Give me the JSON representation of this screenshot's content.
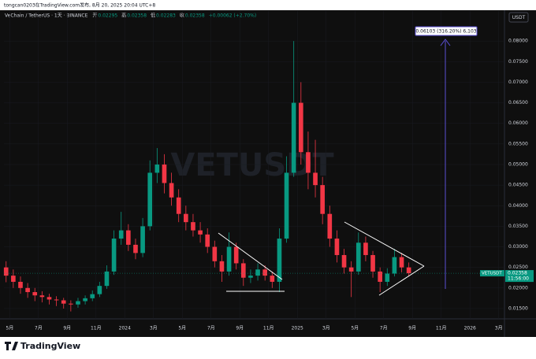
{
  "page_header": "tongcan0203在TradingView.com发布, 8月 20, 2025 20:04 UTC+8",
  "footer_brand": "TradingView",
  "chart_data": {
    "type": "candlestick",
    "title": "VeChain / TetherUS · 1天 · BINANCE",
    "ohlc_header": [
      {
        "label": "开",
        "value": "0.02295"
      },
      {
        "label": "高",
        "value": "0.02358"
      },
      {
        "label": "低",
        "value": "0.02283"
      },
      {
        "label": "收",
        "value": "0.02358"
      }
    ],
    "change": "+0.00062 (+2.70%)",
    "watermark": "VETUSDT",
    "currency": "USDT",
    "measure_label": "0.06103 (316.20%) 6,103",
    "last_price": {
      "symbol": "VETUSDT",
      "price": "0.02358",
      "countdown": "11:56:00"
    },
    "x": [
      -0.25,
      0.25,
      0.75,
      1.25,
      1.75,
      2.25,
      2.75,
      3.25,
      3.75,
      4.25,
      4.75,
      5.25,
      5.75,
      6.25,
      6.75,
      7.25,
      7.75,
      8.25,
      8.75,
      9.25,
      9.75,
      10.25,
      10.75,
      11.25,
      11.75,
      12.25,
      12.75,
      13.25,
      13.75,
      14.25,
      14.75,
      15.25,
      15.75,
      16.25,
      16.75,
      17.25,
      17.75,
      18.25,
      18.75,
      19.25,
      19.75,
      20.25,
      20.75,
      21.25,
      21.75,
      22.25,
      22.75,
      23.25,
      23.75,
      24.25,
      24.75,
      25.25,
      25.75,
      26.25,
      26.75,
      27.25,
      27.75
    ],
    "series": [
      {
        "name": "VETUSDT",
        "up_color": "#089981",
        "down_color": "#f23645",
        "open": [
          0.025,
          0.023,
          0.0215,
          0.02,
          0.019,
          0.0182,
          0.0178,
          0.0172,
          0.017,
          0.0162,
          0.016,
          0.0168,
          0.0175,
          0.0185,
          0.0205,
          0.024,
          0.032,
          0.034,
          0.0305,
          0.0285,
          0.035,
          0.048,
          0.05,
          0.0455,
          0.042,
          0.038,
          0.036,
          0.034,
          0.033,
          0.03,
          0.0265,
          0.024,
          0.03,
          0.026,
          0.0225,
          0.023,
          0.0245,
          0.023,
          0.0215,
          0.032,
          0.048,
          0.065,
          0.053,
          0.048,
          0.045,
          0.038,
          0.032,
          0.028,
          0.025,
          0.024,
          0.031,
          0.028,
          0.024,
          0.0215,
          0.0235,
          0.0275,
          0.025
        ],
        "high": [
          0.0265,
          0.0245,
          0.0228,
          0.0212,
          0.02,
          0.0192,
          0.0186,
          0.018,
          0.0176,
          0.017,
          0.0176,
          0.0182,
          0.0194,
          0.0215,
          0.0255,
          0.034,
          0.0385,
          0.0355,
          0.032,
          0.037,
          0.051,
          0.054,
          0.0525,
          0.048,
          0.044,
          0.04,
          0.038,
          0.036,
          0.0345,
          0.0315,
          0.028,
          0.0335,
          0.031,
          0.027,
          0.0245,
          0.026,
          0.0255,
          0.024,
          0.0345,
          0.052,
          0.08,
          0.07,
          0.058,
          0.056,
          0.047,
          0.04,
          0.034,
          0.0295,
          0.0265,
          0.0335,
          0.0325,
          0.029,
          0.025,
          0.0248,
          0.0295,
          0.0285,
          0.0262
        ],
        "low": [
          0.0214,
          0.02,
          0.0186,
          0.0176,
          0.0168,
          0.0165,
          0.016,
          0.0156,
          0.015,
          0.0143,
          0.0152,
          0.016,
          0.0168,
          0.0178,
          0.0198,
          0.0232,
          0.0305,
          0.029,
          0.027,
          0.0275,
          0.034,
          0.0455,
          0.043,
          0.04,
          0.036,
          0.034,
          0.0325,
          0.031,
          0.0285,
          0.025,
          0.0215,
          0.023,
          0.0245,
          0.0205,
          0.0212,
          0.0218,
          0.0218,
          0.02,
          0.019,
          0.031,
          0.047,
          0.05,
          0.044,
          0.042,
          0.0355,
          0.03,
          0.0262,
          0.0235,
          0.0178,
          0.0232,
          0.0265,
          0.0225,
          0.019,
          0.0205,
          0.0228,
          0.0238,
          0.0228
        ],
        "close": [
          0.023,
          0.0215,
          0.02,
          0.019,
          0.0182,
          0.0178,
          0.0172,
          0.017,
          0.0162,
          0.016,
          0.0168,
          0.0175,
          0.0185,
          0.0205,
          0.024,
          0.032,
          0.034,
          0.0305,
          0.0285,
          0.035,
          0.048,
          0.05,
          0.0455,
          0.042,
          0.038,
          0.036,
          0.034,
          0.033,
          0.03,
          0.0265,
          0.024,
          0.03,
          0.026,
          0.0225,
          0.023,
          0.0245,
          0.023,
          0.0215,
          0.032,
          0.048,
          0.065,
          0.053,
          0.048,
          0.045,
          0.038,
          0.032,
          0.028,
          0.025,
          0.024,
          0.031,
          0.028,
          0.024,
          0.0215,
          0.0235,
          0.0275,
          0.025,
          0.02358
        ]
      }
    ],
    "xlim": [
      -0.4,
      34.4
    ],
    "xticks": [
      {
        "value": 0,
        "label": "5月"
      },
      {
        "value": 2,
        "label": "7月"
      },
      {
        "value": 4,
        "label": "9月"
      },
      {
        "value": 6,
        "label": "11月"
      },
      {
        "value": 8,
        "label": "2024"
      },
      {
        "value": 10,
        "label": "3月"
      },
      {
        "value": 12,
        "label": "5月"
      },
      {
        "value": 14,
        "label": "7月"
      },
      {
        "value": 16,
        "label": "9月"
      },
      {
        "value": 18,
        "label": "11月"
      },
      {
        "value": 20,
        "label": "2025"
      },
      {
        "value": 22,
        "label": "3月"
      },
      {
        "value": 24,
        "label": "5月"
      },
      {
        "value": 26,
        "label": "7月"
      },
      {
        "value": 28,
        "label": "9月"
      },
      {
        "value": 30,
        "label": "11月"
      },
      {
        "value": 32,
        "label": "2026"
      },
      {
        "value": 34,
        "label": "3月"
      }
    ],
    "ylim": [
      0.0125,
      0.0873
    ],
    "yticks": [
      {
        "value": 0.015,
        "label": "0.01500"
      },
      {
        "value": 0.02,
        "label": "0.02000"
      },
      {
        "value": 0.025,
        "label": "0.02500"
      },
      {
        "value": 0.03,
        "label": "0.03000"
      },
      {
        "value": 0.035,
        "label": "0.03500"
      },
      {
        "value": 0.04,
        "label": "0.04000"
      },
      {
        "value": 0.045,
        "label": "0.04500"
      },
      {
        "value": 0.05,
        "label": "0.05000"
      },
      {
        "value": 0.055,
        "label": "0.05500"
      },
      {
        "value": 0.06,
        "label": "0.06000"
      },
      {
        "value": 0.065,
        "label": "0.06500"
      },
      {
        "value": 0.07,
        "label": "0.07000"
      },
      {
        "value": 0.075,
        "label": "0.07500"
      },
      {
        "value": 0.08,
        "label": "0.08000"
      }
    ]
  }
}
